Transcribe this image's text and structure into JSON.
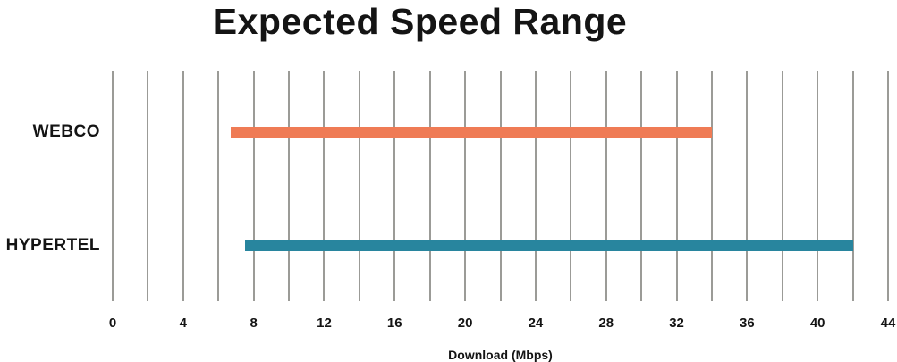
{
  "chart_data": {
    "type": "bar",
    "variant": "horizontal-range",
    "title": "Expected Speed Range",
    "xlabel": "Download (Mbps)",
    "categories": [
      "WEBCO",
      "HYPERTEL"
    ],
    "series": [
      {
        "name": "WEBCO",
        "range_mbps": [
          6.7,
          34
        ],
        "color": "#ef7b55"
      },
      {
        "name": "HYPERTEL",
        "range_mbps": [
          7.5,
          42
        ],
        "color": "#28859e"
      }
    ],
    "xlim": [
      0,
      44
    ],
    "x_tick_labels": [
      0,
      4,
      8,
      12,
      16,
      20,
      24,
      28,
      32,
      36,
      40,
      44
    ],
    "gridline_step": 2,
    "grid": "vertical-only",
    "gridline_color": "#9b9b97",
    "legend": "none",
    "background": "#ffffff",
    "text_color": "#141414"
  }
}
